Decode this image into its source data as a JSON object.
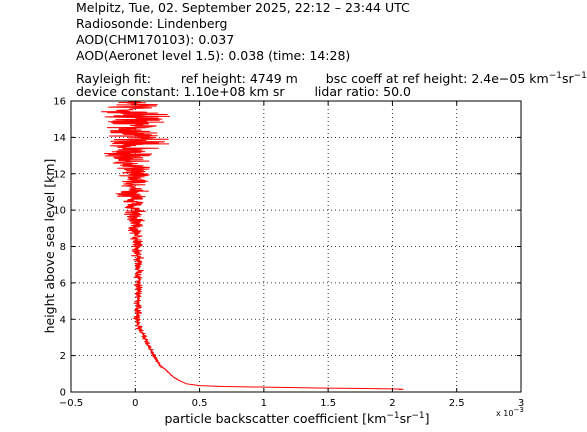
{
  "header": {
    "line1": "Melpitz, Tue, 02. September 2025, 22:12 – 23:44 UTC",
    "line2": "Radiosonde: Lindenberg",
    "line3": "AOD(CHM170103): 0.037",
    "line4": "AOD(Aeronet level 1.5): 0.038   (time: 14:28)",
    "rayleigh_label": "Rayleigh fit:",
    "ref_height": "ref height: 4749 m",
    "bsc_prefix": "bsc coeff at ref height: 2.4e−05 km",
    "bsc_exp1": "−1",
    "bsc_mid": "sr",
    "bsc_exp2": "−1",
    "device_constant": "device constant: 1.10e+08 km sr",
    "lidar_ratio": "lidar ratio: 50.0"
  },
  "chart_data": {
    "type": "line",
    "xlabel_prefix": "particle backscatter coefficient [km",
    "xlabel_exp1": "−1",
    "xlabel_mid": "sr",
    "xlabel_exp2": "−1",
    "xlabel_suffix": "]",
    "ylabel": "height above sea level [km]",
    "x_multiplier": "x 10",
    "x_multiplier_exp": "−3",
    "xlim": [
      -0.5,
      3.0
    ],
    "ylim": [
      0,
      16
    ],
    "xticks": [
      "−0.5",
      "0",
      "0.5",
      "1",
      "1.5",
      "2",
      "2.5",
      "3"
    ],
    "yticks": [
      "0",
      "2",
      "4",
      "6",
      "8",
      "10",
      "12",
      "14",
      "16"
    ],
    "grid": true,
    "series": [
      {
        "color": "#ff0000",
        "profile": [
          [
            0.14,
            2.05
          ],
          [
            0.16,
            2.09
          ],
          [
            0.18,
            1.9
          ],
          [
            0.2,
            1.7
          ],
          [
            0.23,
            1.3
          ],
          [
            0.27,
            1.0
          ],
          [
            0.3,
            0.7
          ],
          [
            0.35,
            0.5
          ],
          [
            0.45,
            0.4
          ],
          [
            0.6,
            0.35
          ],
          [
            0.8,
            0.3
          ],
          [
            1.0,
            0.27
          ],
          [
            1.2,
            0.24
          ],
          [
            1.4,
            0.2
          ],
          [
            1.6,
            0.18
          ],
          [
            1.8,
            0.16
          ],
          [
            2.0,
            0.15
          ],
          [
            2.3,
            0.12
          ],
          [
            2.6,
            0.1
          ],
          [
            3.0,
            0.07
          ],
          [
            3.5,
            0.03
          ],
          [
            4.0,
            0.02
          ],
          [
            5.0,
            0.02
          ],
          [
            6.0,
            0.03
          ],
          [
            7.0,
            0.02
          ],
          [
            8.0,
            0.02
          ],
          [
            9.0,
            0.0
          ],
          [
            10.0,
            0.0
          ],
          [
            11.0,
            -0.03
          ],
          [
            12.0,
            0.0
          ],
          [
            13.0,
            -0.1
          ],
          [
            14.0,
            0.0
          ],
          [
            15.0,
            0.0
          ],
          [
            15.5,
            0.0
          ],
          [
            16.0,
            0.0
          ]
        ],
        "noise": [
          [
            0.5,
            0.005
          ],
          [
            2.0,
            0.02
          ],
          [
            3.0,
            0.03
          ],
          [
            5.0,
            0.04
          ],
          [
            7.0,
            0.05
          ],
          [
            9.0,
            0.08
          ],
          [
            11.0,
            0.15
          ],
          [
            12.5,
            0.22
          ],
          [
            13.5,
            0.35
          ],
          [
            14.5,
            0.38
          ],
          [
            15.5,
            0.4
          ],
          [
            16.0,
            0.2
          ]
        ]
      }
    ]
  }
}
